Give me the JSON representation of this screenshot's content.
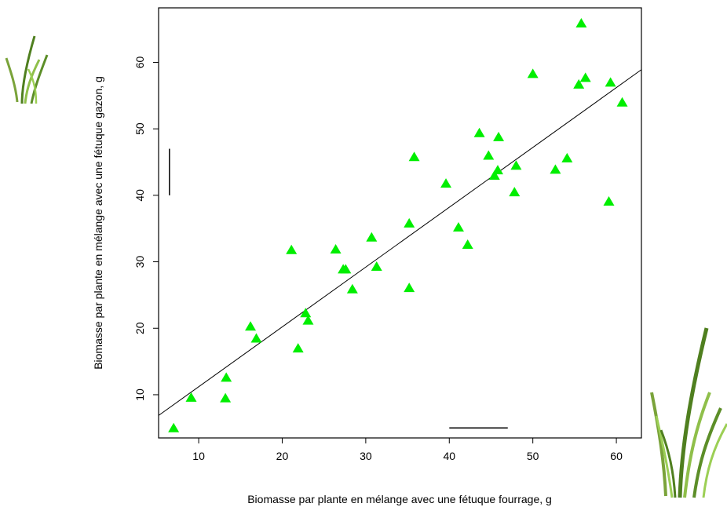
{
  "chart_data": {
    "type": "scatter",
    "xlabel": "Biomasse par plante en mélange avec une fétuque fourrage, g",
    "ylabel": "Biomasse par plante en mélange avec une fétuque gazon, g",
    "xlim": [
      5.2,
      63
    ],
    "ylim": [
      3.5,
      68.2
    ],
    "xticks": [
      10,
      20,
      30,
      40,
      50,
      60
    ],
    "yticks": [
      10,
      20,
      30,
      40,
      50,
      60
    ],
    "grid": false,
    "marker": "filled-triangle",
    "marker_color": "#00ee00",
    "series": [
      {
        "points": [
          [
            7.0,
            5.0
          ],
          [
            9.1,
            9.6
          ],
          [
            13.2,
            9.5
          ],
          [
            13.3,
            12.6
          ],
          [
            16.2,
            20.3
          ],
          [
            16.9,
            18.5
          ],
          [
            21.1,
            31.8
          ],
          [
            21.9,
            17.0
          ],
          [
            22.8,
            22.3
          ],
          [
            23.1,
            21.2
          ],
          [
            26.4,
            31.9
          ],
          [
            27.3,
            28.9
          ],
          [
            27.6,
            28.9
          ],
          [
            28.4,
            25.9
          ],
          [
            30.7,
            33.7
          ],
          [
            31.3,
            29.3
          ],
          [
            35.2,
            35.8
          ],
          [
            35.2,
            26.1
          ],
          [
            35.8,
            45.8
          ],
          [
            39.6,
            41.8
          ],
          [
            41.1,
            35.2
          ],
          [
            42.2,
            32.6
          ],
          [
            43.6,
            49.4
          ],
          [
            44.7,
            46.0
          ],
          [
            45.4,
            43.0
          ],
          [
            45.8,
            43.8
          ],
          [
            45.9,
            48.8
          ],
          [
            47.8,
            40.5
          ],
          [
            48.0,
            44.5
          ],
          [
            50.0,
            58.3
          ],
          [
            52.7,
            43.9
          ],
          [
            54.1,
            45.6
          ],
          [
            55.5,
            56.7
          ],
          [
            55.8,
            65.9
          ],
          [
            56.3,
            57.7
          ],
          [
            59.1,
            39.1
          ],
          [
            59.3,
            57.0
          ],
          [
            60.7,
            54.0
          ]
        ]
      }
    ],
    "regression_line": {
      "intercept": 2.2,
      "slope": 0.9
    },
    "scale_bars": {
      "vertical": {
        "x": 6.5,
        "y_from": 40,
        "y_to": 47
      },
      "horizontal": {
        "y": 5.0,
        "x_from": 40,
        "x_to": 47
      }
    },
    "decorations": [
      "grass-tuft-small",
      "grass-tuft-large"
    ]
  }
}
